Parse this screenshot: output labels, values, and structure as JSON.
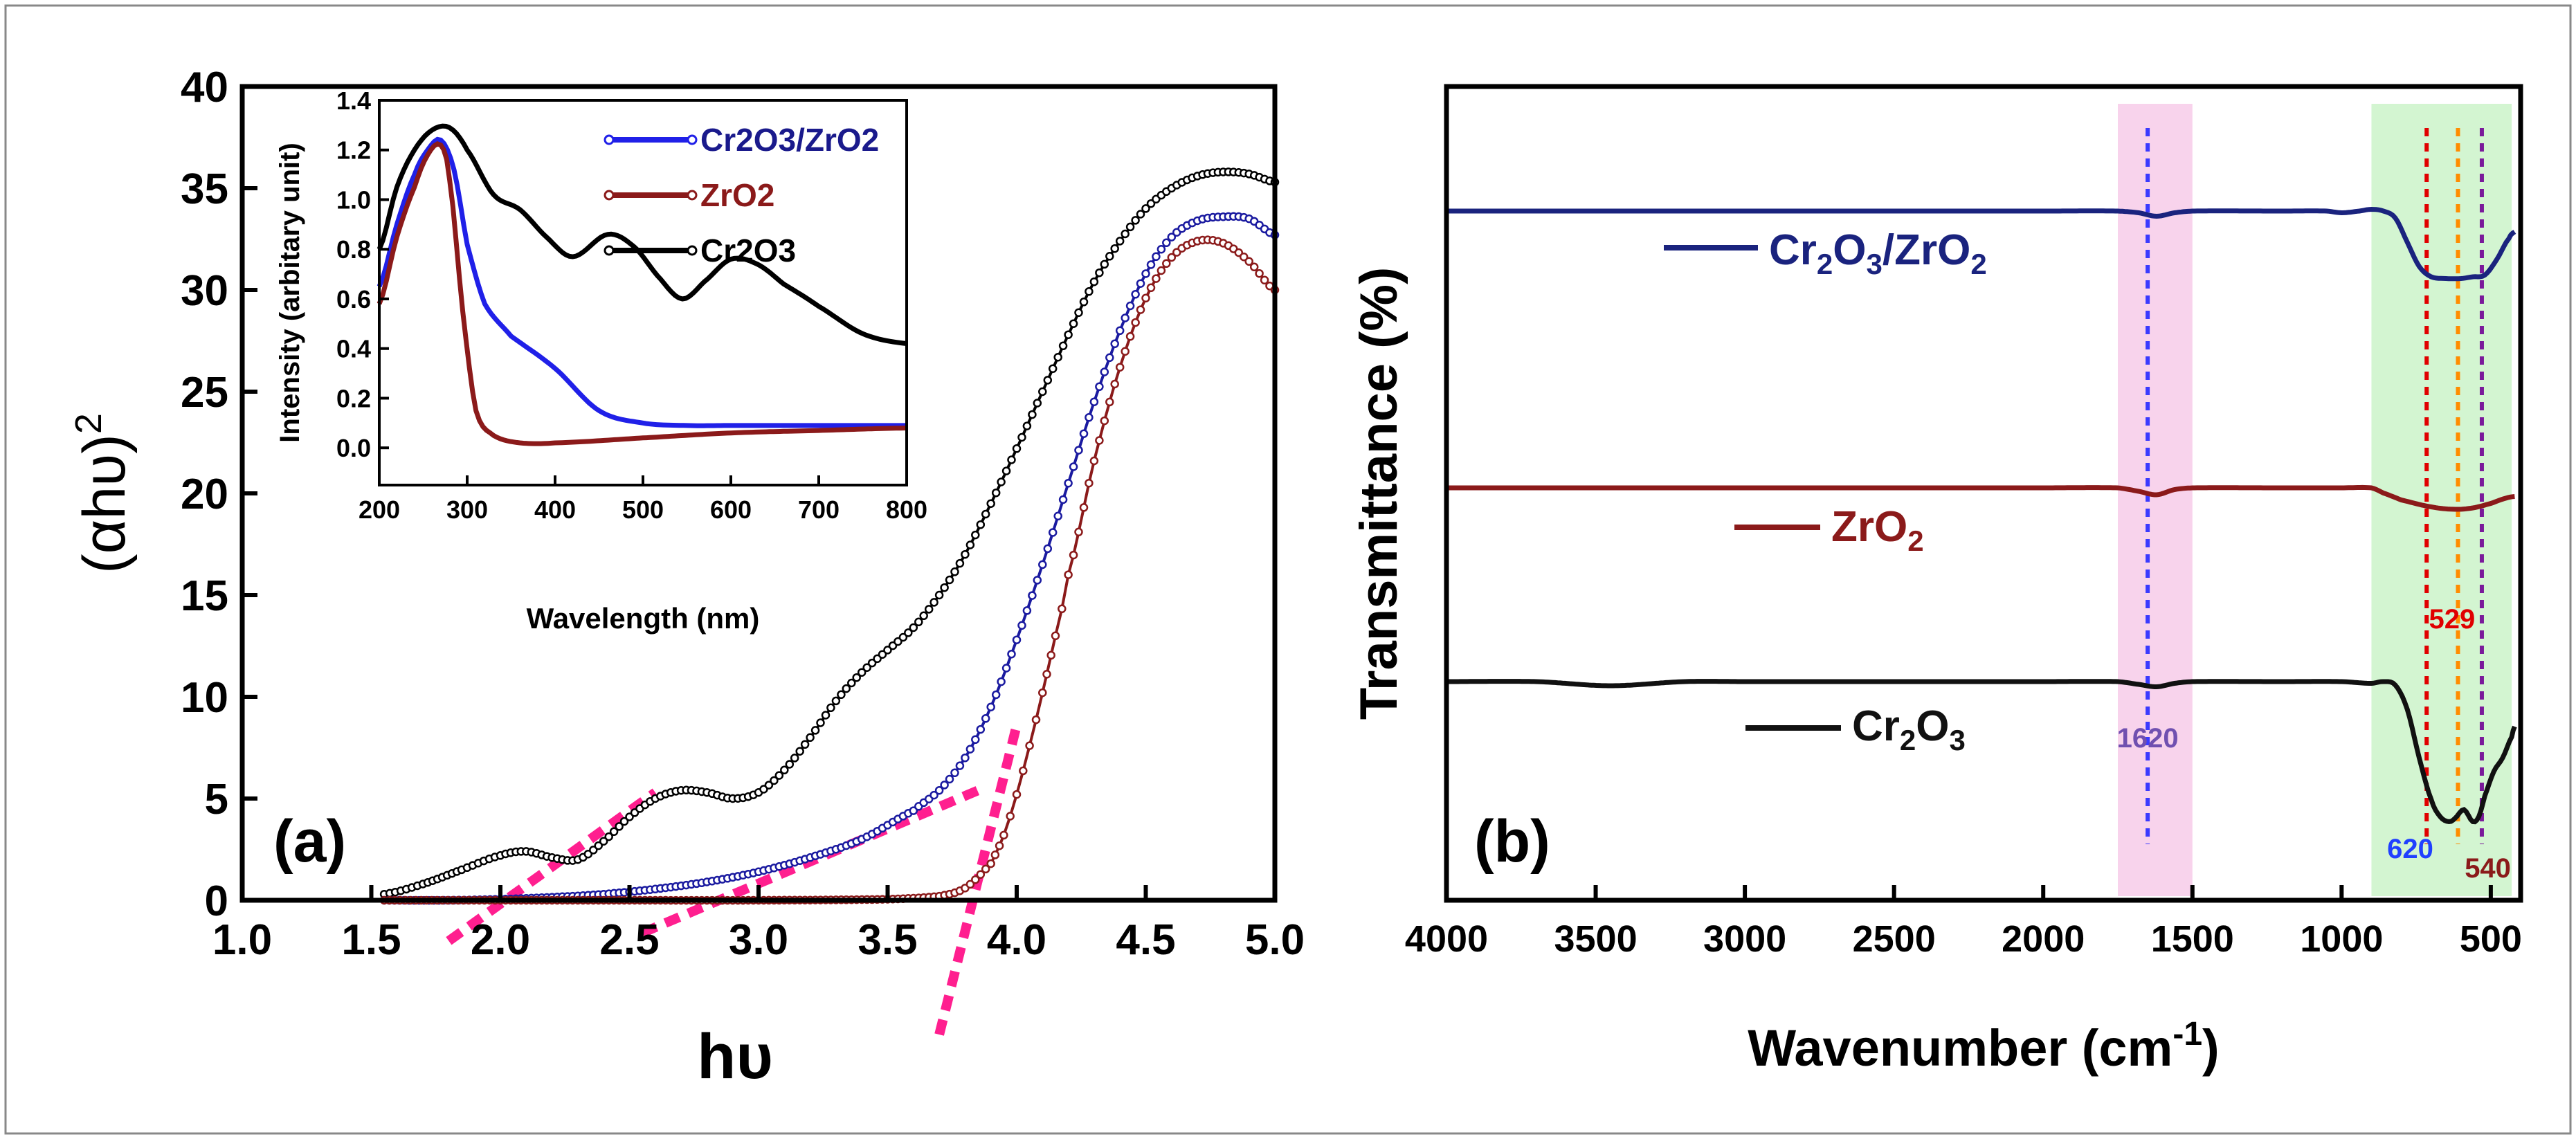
{
  "chart_data": [
    {
      "panel": "a",
      "type": "scatter",
      "panel_label": "(a)",
      "title": "",
      "xlabel": "hυ",
      "ylabel": "(αhυ)",
      "ylabel_superscript": "2",
      "xlim": [
        1.0,
        5.0
      ],
      "ylim": [
        0,
        40
      ],
      "xticks": [
        "1.0",
        "1.5",
        "2.0",
        "2.5",
        "3.0",
        "3.5",
        "4.0",
        "4.5",
        "5.0"
      ],
      "yticks": [
        "0",
        "5",
        "10",
        "15",
        "20",
        "25",
        "30",
        "35",
        "40"
      ],
      "series": [
        {
          "name": "Cr2O3",
          "color": "#000000",
          "x": [
            1.55,
            1.7,
            1.85,
            2.0,
            2.1,
            2.2,
            2.3,
            2.4,
            2.5,
            2.6,
            2.7,
            2.8,
            2.9,
            3.0,
            3.1,
            3.2,
            3.3,
            3.4,
            3.5,
            3.6,
            3.7,
            3.8,
            3.9,
            4.0,
            4.1,
            4.2,
            4.3,
            4.4,
            4.5,
            4.6,
            4.7,
            4.8,
            4.9,
            5.0
          ],
          "y": [
            0.3,
            0.8,
            1.5,
            2.2,
            2.4,
            2.1,
            2.0,
            2.9,
            4.1,
            5.0,
            5.4,
            5.3,
            5.0,
            5.3,
            6.4,
            8.0,
            9.8,
            11.2,
            12.3,
            13.4,
            15.0,
            17.0,
            19.5,
            22.2,
            25.0,
            27.8,
            30.4,
            32.4,
            34.0,
            35.0,
            35.6,
            35.8,
            35.7,
            35.3
          ]
        },
        {
          "name": "Cr2O3/ZrO2",
          "color": "#1a1aa0",
          "x": [
            1.55,
            1.8,
            2.0,
            2.2,
            2.4,
            2.6,
            2.8,
            3.0,
            3.2,
            3.4,
            3.6,
            3.7,
            3.8,
            3.9,
            4.0,
            4.1,
            4.2,
            4.3,
            4.4,
            4.5,
            4.6,
            4.7,
            4.8,
            4.9,
            5.0
          ],
          "y": [
            0.0,
            0.0,
            0.05,
            0.15,
            0.3,
            0.55,
            0.9,
            1.4,
            2.1,
            3.0,
            4.4,
            5.4,
            7.0,
            9.5,
            12.8,
            16.5,
            20.5,
            24.5,
            28.0,
            30.8,
            32.6,
            33.4,
            33.6,
            33.5,
            32.7
          ]
        },
        {
          "name": "ZrO2",
          "color": "#8b1a1a",
          "x": [
            1.55,
            2.0,
            2.5,
            3.0,
            3.5,
            3.7,
            3.8,
            3.9,
            3.95,
            4.0,
            4.05,
            4.1,
            4.15,
            4.2,
            4.3,
            4.4,
            4.5,
            4.6,
            4.7,
            4.8,
            4.9,
            5.0
          ],
          "y": [
            0.0,
            0.0,
            0.0,
            0.0,
            0.05,
            0.2,
            0.6,
            1.8,
            3.2,
            5.2,
            7.6,
            10.2,
            13.0,
            16.0,
            21.6,
            26.2,
            29.6,
            31.6,
            32.4,
            32.3,
            31.4,
            30.0
          ]
        }
      ],
      "tangent_lines": [
        {
          "x": [
            1.8,
            2.6
          ],
          "y": [
            -2.0,
            5.3
          ]
        },
        {
          "x": [
            2.55,
            3.85
          ],
          "y": [
            -1.6,
            5.4
          ]
        },
        {
          "x": [
            3.7,
            4.0
          ],
          "y": [
            -6.6,
            8.6
          ]
        }
      ],
      "inset": {
        "type": "line",
        "xlabel": "Wavelength (nm)",
        "ylabel": "Intensity (arbitary unit)",
        "xlim": [
          200,
          800
        ],
        "ylim": [
          -0.15,
          1.4
        ],
        "xticks": [
          "200",
          "300",
          "400",
          "500",
          "600",
          "700",
          "800"
        ],
        "yticks": [
          "0.0",
          "0.2",
          "0.4",
          "0.6",
          "0.8",
          "1.0",
          "1.2",
          "1.4"
        ],
        "legend": [
          "Cr2O3/ZrO2",
          "ZrO2",
          "Cr2O3"
        ],
        "series": [
          {
            "name": "Cr2O3/ZrO2",
            "color": "#2020e8",
            "x": [
              200,
              220,
              240,
              255,
              270,
              285,
              300,
              320,
              350,
              400,
              450,
              500,
              550,
              600,
              700,
              800
            ],
            "y": [
              0.65,
              0.9,
              1.1,
              1.2,
              1.24,
              1.12,
              0.82,
              0.58,
              0.45,
              0.32,
              0.15,
              0.1,
              0.09,
              0.09,
              0.09,
              0.09
            ]
          },
          {
            "name": "ZrO2",
            "color": "#8b1a1a",
            "x": [
              200,
              220,
              240,
              255,
              270,
              280,
              295,
              310,
              330,
              360,
              400,
              500,
              600,
              700,
              800
            ],
            "y": [
              0.58,
              0.85,
              1.05,
              1.18,
              1.22,
              1.08,
              0.55,
              0.15,
              0.05,
              0.02,
              0.02,
              0.04,
              0.06,
              0.07,
              0.08
            ]
          },
          {
            "name": "Cr2O3",
            "color": "#000000",
            "x": [
              200,
              220,
              240,
              260,
              280,
              300,
              330,
              360,
              390,
              420,
              460,
              490,
              520,
              545,
              570,
              600,
              630,
              660,
              700,
              750,
              800
            ],
            "y": [
              0.8,
              1.05,
              1.2,
              1.28,
              1.29,
              1.2,
              1.02,
              0.96,
              0.85,
              0.77,
              0.86,
              0.81,
              0.68,
              0.6,
              0.67,
              0.76,
              0.74,
              0.66,
              0.57,
              0.46,
              0.42
            ]
          }
        ]
      }
    },
    {
      "panel": "b",
      "type": "line",
      "panel_label": "(b)",
      "title": "",
      "xlabel": "Wavenumber (cm",
      "xlabel_superscript": "-1",
      "xlabel_close": ")",
      "ylabel": "Transmittance (%)",
      "xlim": [
        4000,
        400
      ],
      "xticks": [
        "4000",
        "3500",
        "3000",
        "2500",
        "2000",
        "1500",
        "1000",
        "500"
      ],
      "yticks": [],
      "series": [
        {
          "name": "Cr2O3/ZrO2",
          "color": "#1a237e",
          "legend_parts": [
            "Cr",
            "2",
            "O",
            "3",
            "/ZrO",
            "2"
          ],
          "x": [
            4000,
            3500,
            3000,
            2500,
            2000,
            1750,
            1680,
            1620,
            1560,
            1500,
            1200,
            1050,
            1000,
            940,
            900,
            860,
            820,
            780,
            740,
            700,
            650,
            600,
            560,
            520,
            480,
            440,
            420
          ],
          "y": [
            0.0,
            0.0,
            0.0,
            0.0,
            0.0,
            0.0,
            -0.05,
            -0.15,
            -0.05,
            0.0,
            0.0,
            0.0,
            -0.05,
            0.0,
            0.05,
            0.0,
            -0.2,
            -0.9,
            -1.6,
            -1.9,
            -1.95,
            -1.95,
            -1.9,
            -1.85,
            -1.4,
            -0.8,
            -0.6
          ]
        },
        {
          "name": "ZrO2",
          "color": "#8b1a1a",
          "legend_parts": [
            "ZrO",
            "2"
          ],
          "x": [
            4000,
            3500,
            3000,
            2500,
            2000,
            1750,
            1680,
            1620,
            1560,
            1500,
            1200,
            1000,
            900,
            860,
            800,
            700,
            620,
            560,
            500,
            450,
            420
          ],
          "y": [
            0.0,
            0.0,
            0.0,
            0.0,
            0.0,
            0.0,
            -0.1,
            -0.2,
            -0.05,
            0.0,
            0.0,
            0.0,
            0.0,
            -0.15,
            -0.35,
            -0.55,
            -0.62,
            -0.58,
            -0.45,
            -0.3,
            -0.25
          ]
        },
        {
          "name": "Cr2O3",
          "color": "#111111",
          "legend_parts": [
            "Cr",
            "2",
            "O",
            "3"
          ],
          "x": [
            4000,
            3700,
            3450,
            3200,
            3000,
            2500,
            2000,
            1750,
            1680,
            1620,
            1560,
            1500,
            1200,
            1000,
            900,
            860,
            820,
            780,
            740,
            700,
            670,
            640,
            620,
            590,
            560,
            540,
            520,
            490,
            460,
            430,
            420
          ],
          "y": [
            0.0,
            0.0,
            -0.12,
            0.0,
            0.0,
            0.0,
            0.0,
            0.0,
            -0.08,
            -0.15,
            -0.05,
            0.0,
            0.0,
            0.0,
            -0.05,
            0.0,
            -0.1,
            -0.8,
            -2.2,
            -3.4,
            -3.9,
            -4.05,
            -3.95,
            -3.7,
            -4.05,
            -3.9,
            -3.3,
            -2.6,
            -2.2,
            -1.6,
            -1.3
          ]
        }
      ],
      "highlight_bands": [
        {
          "from": 1750,
          "to": 1500,
          "color": "#f8d3ec"
        },
        {
          "from": 900,
          "to": 430,
          "color": "#d3f5d1"
        }
      ],
      "marker_lines": [
        {
          "x": 1650,
          "color": "#3a3aff"
        },
        {
          "x": 715,
          "color": "#e00000"
        },
        {
          "x": 610,
          "color": "#ff8c00"
        },
        {
          "x": 530,
          "color": "#7a1a9a"
        }
      ],
      "annotations": [
        {
          "text": "1620",
          "x": 1650,
          "color": "#7050b0",
          "row": "bottom"
        },
        {
          "text": "529",
          "x": 630,
          "color": "#e00000",
          "row": "middle"
        },
        {
          "text": "620",
          "x": 770,
          "color": "#2040ff",
          "row": "bottom-lower"
        },
        {
          "text": "540",
          "x": 510,
          "color": "#8b1a1a",
          "row": "bottom-lowest"
        }
      ]
    }
  ]
}
